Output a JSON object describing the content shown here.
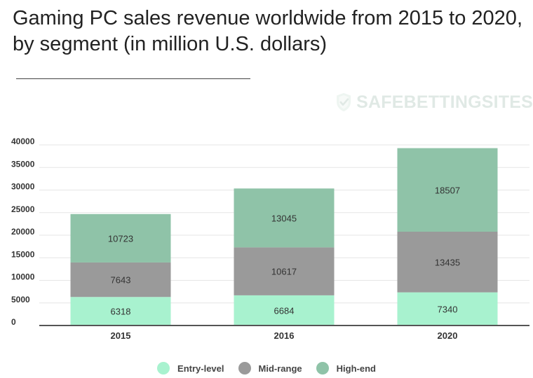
{
  "header": {
    "title": "Gaming PC sales revenue worldwide from 2015 to 2020, by segment (in million U.S. dollars)"
  },
  "watermark": {
    "text": "SAFEBETTINGSITES",
    "icon": "shield-check-icon"
  },
  "colors": {
    "entry": "#a8f2cf",
    "mid": "#9a9a9a",
    "high": "#8fc3a8",
    "grid": "#e6e6e6",
    "axis": "#555555",
    "text": "#333333"
  },
  "chart_data": {
    "type": "bar",
    "stacked": true,
    "title": "Gaming PC sales revenue worldwide from 2015 to 2020, by segment (in million U.S. dollars)",
    "xlabel": "",
    "ylabel": "",
    "categories": [
      "2015",
      "2016",
      "2020"
    ],
    "series": [
      {
        "name": "Entry-level",
        "values": [
          6318,
          6684,
          7340
        ]
      },
      {
        "name": "Mid-range",
        "values": [
          7643,
          10617,
          13435
        ]
      },
      {
        "name": "High-end",
        "values": [
          10723,
          13045,
          18507
        ]
      }
    ],
    "ylim": [
      0,
      40000
    ],
    "yticks": [
      0,
      5000,
      10000,
      15000,
      20000,
      25000,
      30000,
      35000,
      40000
    ],
    "grid": true,
    "legend": "bottom"
  }
}
